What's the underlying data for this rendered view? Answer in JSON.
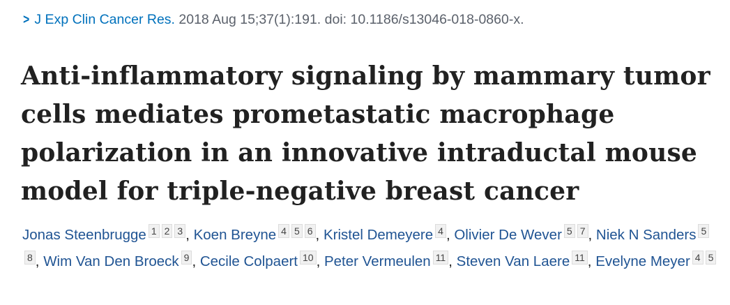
{
  "citation": {
    "journal": "J Exp Clin Cancer Res.",
    "details": "2018 Aug 15;37(1):191. doi: 10.1186/s13046-018-0860-x."
  },
  "title": "Anti-inflammatory signaling by mammary tumor cells mediates prometastatic macrophage polarization in an innovative intraductal mouse model for triple-negative breast cancer",
  "authors": [
    {
      "name": "Jonas Steenbrugge",
      "affiliations": [
        "1",
        "2",
        "3"
      ]
    },
    {
      "name": "Koen Breyne",
      "affiliations": [
        "4",
        "5",
        "6"
      ]
    },
    {
      "name": "Kristel Demeyere",
      "affiliations": [
        "4"
      ]
    },
    {
      "name": "Olivier De Wever",
      "affiliations": [
        "5",
        "7"
      ]
    },
    {
      "name": "Niek N Sanders",
      "affiliations": [
        "5",
        "8"
      ]
    },
    {
      "name": "Wim Van Den Broeck",
      "affiliations": [
        "9"
      ]
    },
    {
      "name": "Cecile Colpaert",
      "affiliations": [
        "10"
      ]
    },
    {
      "name": "Peter Vermeulen",
      "affiliations": [
        "11"
      ]
    },
    {
      "name": "Steven Van Laere",
      "affiliations": [
        "11"
      ]
    },
    {
      "name": "Evelyne Meyer",
      "affiliations": [
        "4",
        "5"
      ]
    }
  ],
  "separator": ",",
  "colors": {
    "link": "#0071bc",
    "author_link": "#205493",
    "title": "#212121",
    "meta": "#5b616b"
  },
  "icons": {
    "journal_chevron": "chevron-right-icon"
  }
}
